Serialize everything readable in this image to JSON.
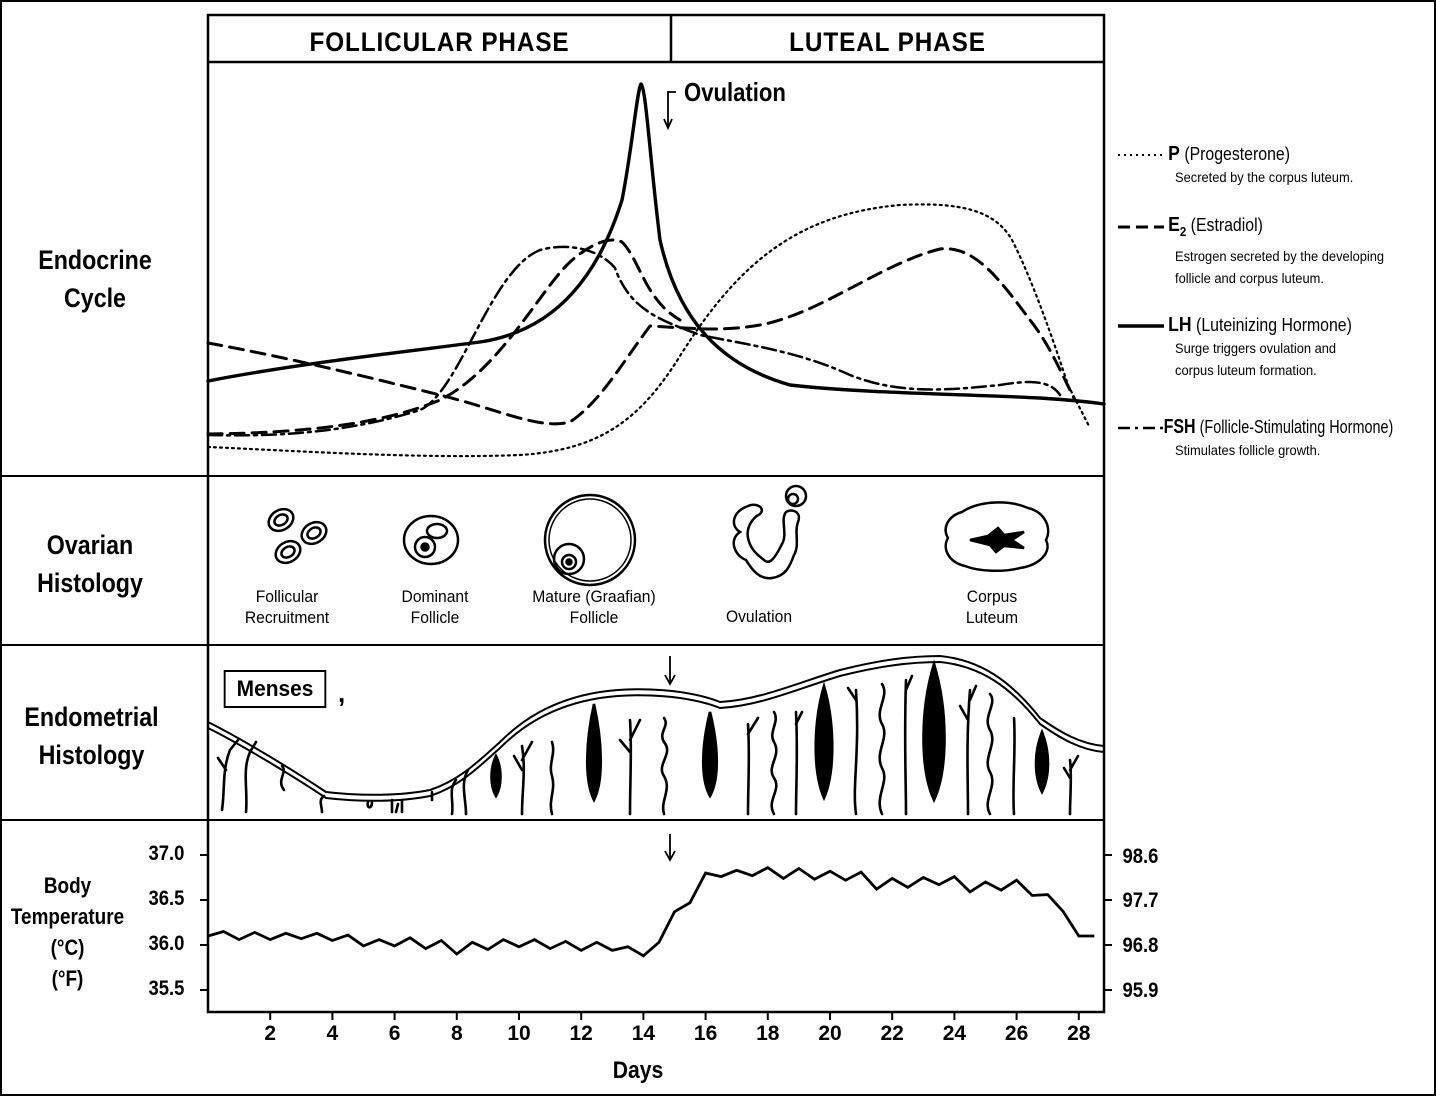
{
  "phases": {
    "follicular": "FOLLICULAR  PHASE",
    "luteal": "LUTEAL  PHASE"
  },
  "row_labels": {
    "endocrine": [
      "Endocrine",
      "Cycle"
    ],
    "ovarian": [
      "Ovarian",
      "Histology"
    ],
    "endometrial": [
      "Endometrial",
      "Histology"
    ],
    "temperature": [
      "Body",
      "Temperature",
      "(°C)",
      "(°F)"
    ]
  },
  "ovulation_label": "Ovulation",
  "legend": [
    {
      "symbol": "P",
      "name": "(Progesterone)",
      "style": "dotted",
      "desc": [
        "Secreted by the corpus luteum."
      ]
    },
    {
      "symbol": "E",
      "sub": "2",
      "name": "(Estradiol)",
      "style": "dashed",
      "desc": [
        "Estrogen secreted by the developing",
        "follicle and corpus luteum."
      ]
    },
    {
      "symbol": "LH",
      "name": "(Luteinizing Hormone)",
      "style": "solid",
      "desc": [
        "Surge triggers ovulation and",
        "corpus luteum formation."
      ]
    },
    {
      "symbol": "FSH",
      "name": "(Follicle-Stimulating Hormone)",
      "style": "dash-dot",
      "desc": [
        "Stimulates follicle growth."
      ]
    }
  ],
  "ovarian_stages": [
    {
      "line1": "Follicular",
      "line2": "Recruitment"
    },
    {
      "line1": "Dominant",
      "line2": "Follicle"
    },
    {
      "line1": "Mature (Graafian)",
      "line2": "Follicle"
    },
    {
      "line1": "",
      "line2": "Ovulation"
    },
    {
      "line1": "Corpus",
      "line2": "Luteum"
    }
  ],
  "menses_label": "Menses",
  "menses_mark": ",",
  "temperature_axis": {
    "celsius_ticks": [
      "37.0",
      "36.5",
      "36.0",
      "35.5"
    ],
    "fahrenheit_ticks": [
      "98.6",
      "97.7",
      "96.8",
      "95.9"
    ]
  },
  "x_axis": {
    "label": "Days",
    "ticks": [
      "2",
      "4",
      "6",
      "8",
      "10",
      "12",
      "14",
      "16",
      "18",
      "20",
      "22",
      "24",
      "26",
      "28"
    ]
  },
  "chart_data": {
    "type": "line",
    "xlabel": "Days",
    "ylabel_left": "(°C)",
    "ylabel_right": "(°F)",
    "ylim": [
      35.4,
      37.1
    ],
    "x": [
      0,
      0.5,
      1,
      1.5,
      2,
      2.5,
      3,
      3.5,
      4,
      4.5,
      5,
      5.5,
      6,
      6.5,
      7,
      7.5,
      8,
      8.5,
      9,
      9.5,
      10,
      10.5,
      11,
      11.5,
      12,
      12.5,
      13,
      13.5,
      14,
      14.5,
      15,
      15.5,
      16,
      16.5,
      17,
      17.5,
      18,
      18.5,
      19,
      19.5,
      20,
      20.5,
      21,
      21.5,
      22,
      22.5,
      23,
      23.5,
      24,
      24.5,
      25,
      25.5,
      26,
      26.5,
      27,
      27.5,
      28,
      28.5
    ],
    "series": [
      {
        "values": [
          36.1,
          36.15,
          36.06,
          36.14,
          36.06,
          36.13,
          36.07,
          36.13,
          36.05,
          36.11,
          35.99,
          36.06,
          35.99,
          36.08,
          35.96,
          36.05,
          35.9,
          36.03,
          35.95,
          36.06,
          35.98,
          36.06,
          35.96,
          36.04,
          35.94,
          36.03,
          35.94,
          35.98,
          35.88,
          36.03,
          36.37,
          36.47,
          36.8,
          36.76,
          36.83,
          36.77,
          36.86,
          36.74,
          36.85,
          36.73,
          36.82,
          36.72,
          36.81,
          36.62,
          36.74,
          36.64,
          36.75,
          36.67,
          36.76,
          36.59,
          36.7,
          36.61,
          36.72,
          36.55,
          36.56,
          36.37,
          36.1,
          36.1
        ]
      }
    ]
  }
}
